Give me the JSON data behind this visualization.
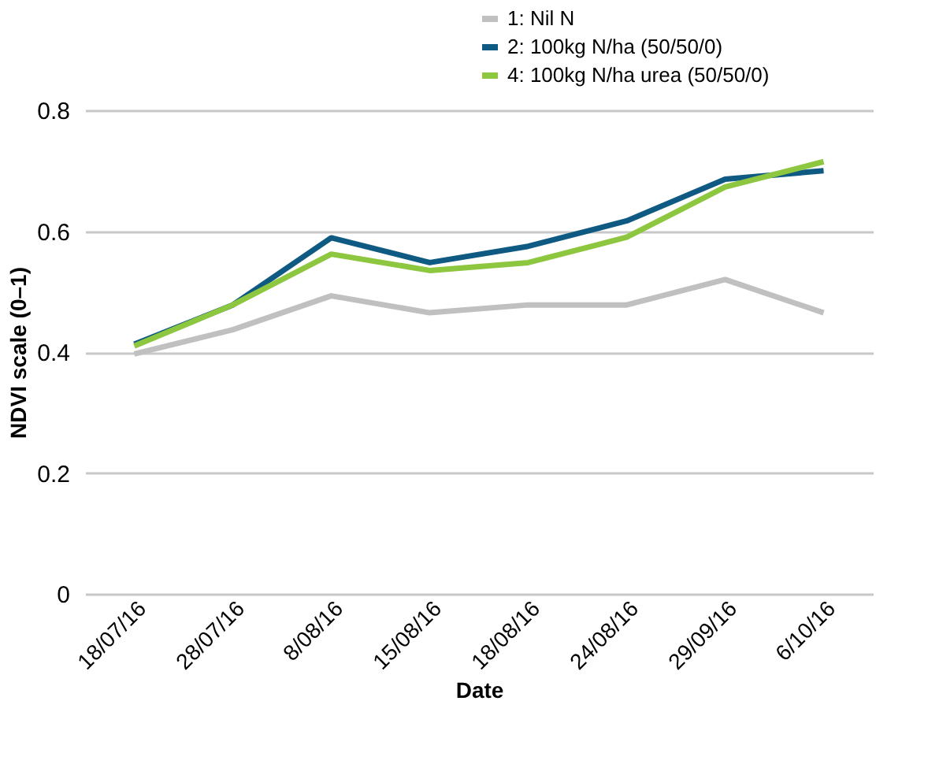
{
  "chart_data": {
    "type": "line",
    "xlabel": "Date",
    "ylabel": "NDVI scale (0–1)",
    "categories": [
      "18/07/16",
      "28/07/16",
      "8/08/16",
      "15/08/16",
      "18/08/16",
      "24/08/16",
      "29/09/16",
      "6/10/16"
    ],
    "series": [
      {
        "name": "1: Nil N",
        "color": "#c0c0c0",
        "values": [
          0.397,
          0.437,
          0.493,
          0.465,
          0.478,
          0.478,
          0.52,
          0.465
        ]
      },
      {
        "name": "2: 100kg N/ha (50/50/0)",
        "color": "#0f5a82",
        "values": [
          0.413,
          0.478,
          0.589,
          0.548,
          0.575,
          0.617,
          0.686,
          0.7
        ]
      },
      {
        "name": "4: 100kg N/ha urea (50/50/0)",
        "color": "#8dc63f",
        "values": [
          0.41,
          0.478,
          0.562,
          0.535,
          0.548,
          0.59,
          0.673,
          0.715
        ]
      }
    ],
    "ylim": [
      0,
      0.8
    ],
    "yticks": [
      0,
      0.2,
      0.4,
      0.6,
      0.8
    ],
    "grid": "y",
    "legend": "top right",
    "marker": "none",
    "line_style": "solid"
  }
}
